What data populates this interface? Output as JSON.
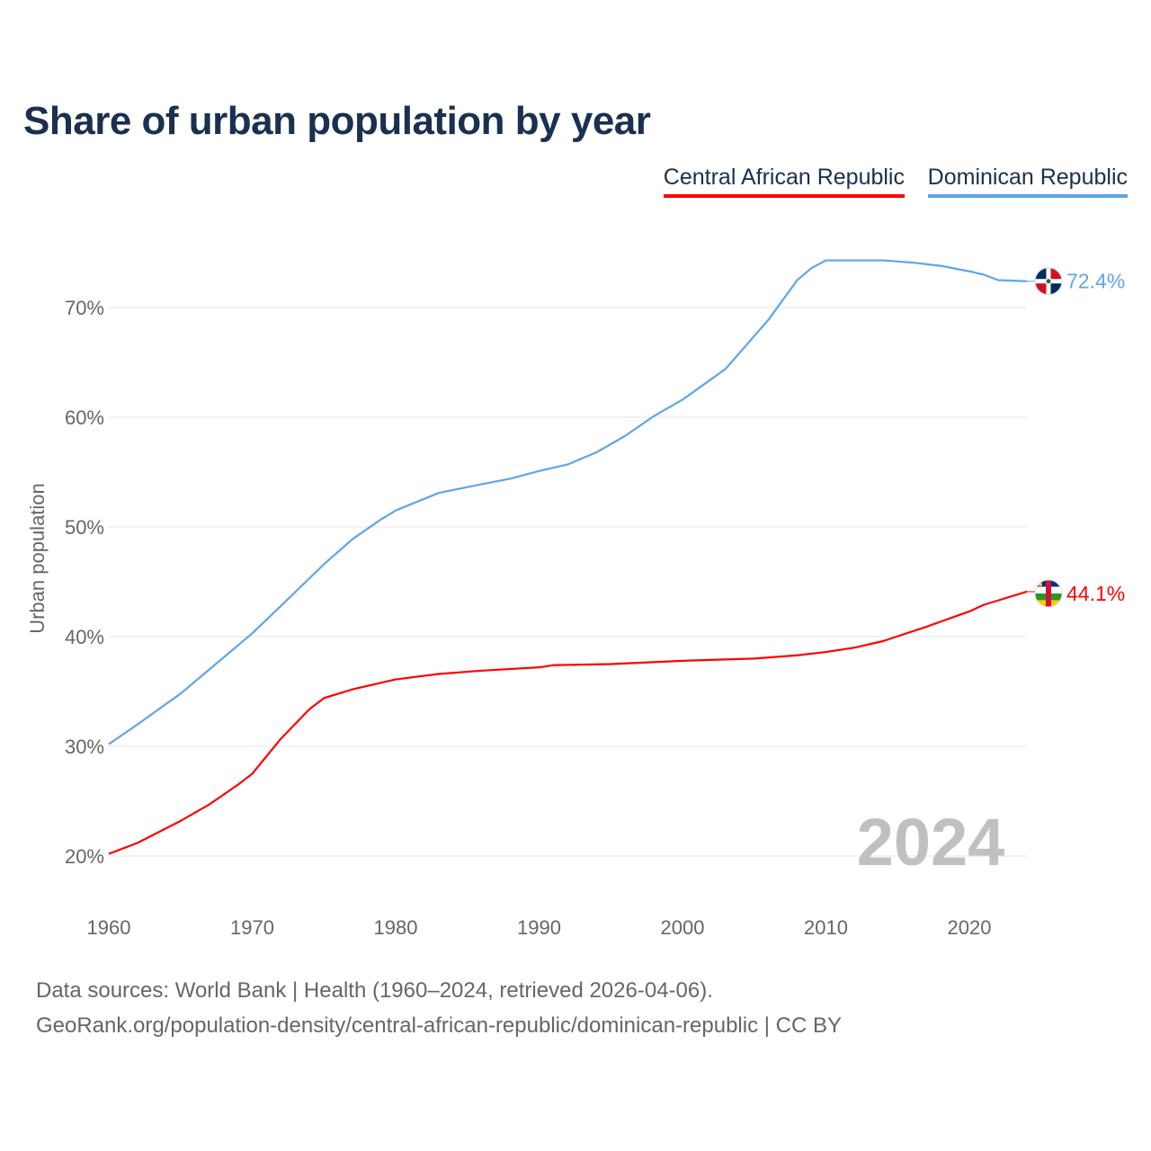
{
  "chart_data": {
    "type": "line",
    "title": "Share of urban population by year",
    "xlabel": "",
    "ylabel": "Urban population",
    "xlim": [
      1960,
      2024
    ],
    "ylim": [
      20,
      75
    ],
    "yticks": [
      20,
      30,
      40,
      50,
      60,
      70
    ],
    "ytick_labels": [
      "20%",
      "30%",
      "40%",
      "50%",
      "60%",
      "70%"
    ],
    "xticks": [
      1960,
      1970,
      1980,
      1990,
      2000,
      2010,
      2020
    ],
    "xtick_labels": [
      "1960",
      "1970",
      "1980",
      "1990",
      "2000",
      "2010",
      "2020"
    ],
    "grid": true,
    "legend_placement": "top-right",
    "year_watermark": "2024",
    "series": [
      {
        "name": "Central African Republic",
        "color": "#ff0000",
        "end_label": "44.1%",
        "flag": "central-african-republic-flag",
        "x": [
          1960,
          1962,
          1965,
          1967,
          1969,
          1970,
          1972,
          1974,
          1975,
          1977,
          1980,
          1983,
          1986,
          1990,
          1991,
          1995,
          2000,
          2005,
          2008,
          2010,
          2012,
          2014,
          2017,
          2020,
          2021,
          2022,
          2024
        ],
        "values": [
          20.2,
          21.2,
          23.2,
          24.7,
          26.5,
          27.5,
          30.7,
          33.4,
          34.4,
          35.2,
          36.1,
          36.6,
          36.9,
          37.2,
          37.4,
          37.5,
          37.8,
          38.0,
          38.3,
          38.6,
          39.0,
          39.6,
          40.9,
          42.3,
          42.9,
          43.3,
          44.1
        ]
      },
      {
        "name": "Dominican Republic",
        "color": "#5da5ec",
        "end_label": "72.4%",
        "flag": "dominican-republic-flag",
        "x": [
          1960,
          1962,
          1965,
          1967,
          1970,
          1972,
          1975,
          1977,
          1979,
          1980,
          1983,
          1986,
          1988,
          1990,
          1992,
          1994,
          1996,
          1998,
          2000,
          2003,
          2004,
          2006,
          2008,
          2009,
          2010,
          2014,
          2016,
          2018,
          2020,
          2021,
          2022,
          2024
        ],
        "values": [
          30.2,
          32.0,
          34.8,
          37.0,
          40.3,
          42.8,
          46.6,
          48.9,
          50.7,
          51.5,
          53.1,
          53.9,
          54.4,
          55.1,
          55.7,
          56.8,
          58.3,
          60.1,
          61.6,
          64.4,
          65.9,
          68.9,
          72.5,
          73.6,
          74.3,
          74.3,
          74.1,
          73.8,
          73.3,
          73.0,
          72.5,
          72.4
        ]
      }
    ]
  },
  "footer": {
    "sources": "Data sources: World Bank | Health (1960–2024, retrieved 2026-04-06).",
    "credit": "GeoRank.org/population-density/central-african-republic/dominican-republic | CC BY"
  }
}
